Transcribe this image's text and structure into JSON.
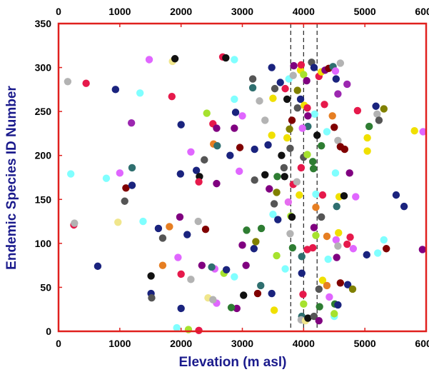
{
  "chart_data": {
    "type": "scatter",
    "xlabel": "Elevation (m asl)",
    "ylabel": "Endemic Species ID Number",
    "xlim": [
      0,
      6000
    ],
    "ylim": [
      0,
      350
    ],
    "xticks": [
      0,
      1000,
      2000,
      3000,
      4000,
      5000,
      6000
    ],
    "yticks": [
      0,
      50,
      100,
      150,
      200,
      250,
      300,
      350
    ],
    "xtick_labels": [
      "0",
      "1000",
      "2000",
      "3000",
      "4000",
      "5000",
      "6000"
    ],
    "ytick_labels": [
      "0",
      "50",
      "100",
      "150",
      "200",
      "250",
      "300",
      "350"
    ],
    "secondary_x_axis": "top",
    "grid": false,
    "frame_color": "#e0201e",
    "reference_lines_x": [
      3790,
      4000,
      4220
    ],
    "reference_line_style": "dashed",
    "points": [
      {
        "x": 150,
        "y": 284,
        "c": "#b3b3b3"
      },
      {
        "x": 450,
        "y": 282,
        "c": "#e6194b"
      },
      {
        "x": 930,
        "y": 275,
        "c": "#1a237e"
      },
      {
        "x": 1330,
        "y": 271,
        "c": "#80ffff"
      },
      {
        "x": 1190,
        "y": 237,
        "c": "#9c27b0"
      },
      {
        "x": 1480,
        "y": 309,
        "c": "#e066ff"
      },
      {
        "x": 1860,
        "y": 307,
        "c": "#f0e68c"
      },
      {
        "x": 1900,
        "y": 310,
        "c": "#111111"
      },
      {
        "x": 1850,
        "y": 267,
        "c": "#e6194b"
      },
      {
        "x": 2000,
        "y": 235,
        "c": "#1a237e"
      },
      {
        "x": 2420,
        "y": 248,
        "c": "#a6e22e"
      },
      {
        "x": 2520,
        "y": 236,
        "c": "#e6194b"
      },
      {
        "x": 2580,
        "y": 231,
        "c": "#800080"
      },
      {
        "x": 2680,
        "y": 312,
        "c": "#e6194b"
      },
      {
        "x": 2730,
        "y": 311,
        "c": "#111111"
      },
      {
        "x": 2870,
        "y": 309,
        "c": "#80ffff"
      },
      {
        "x": 2870,
        "y": 264,
        "c": "#80ffff"
      },
      {
        "x": 2890,
        "y": 249,
        "c": "#1a237e"
      },
      {
        "x": 2870,
        "y": 231,
        "c": "#800080"
      },
      {
        "x": 3000,
        "y": 245,
        "c": "#e066ff"
      },
      {
        "x": 3170,
        "y": 287,
        "c": "#555555"
      },
      {
        "x": 3170,
        "y": 277,
        "c": "#2f6f6f"
      },
      {
        "x": 3280,
        "y": 262,
        "c": "#b3b3b3"
      },
      {
        "x": 3370,
        "y": 240,
        "c": "#b3b3b3"
      },
      {
        "x": 3200,
        "y": 207,
        "c": "#1a237e"
      },
      {
        "x": 3420,
        "y": 212,
        "c": "#1a237e"
      },
      {
        "x": 3480,
        "y": 300,
        "c": "#1a237e"
      },
      {
        "x": 3500,
        "y": 265,
        "c": "#f0e000"
      },
      {
        "x": 3530,
        "y": 276,
        "c": "#555555"
      },
      {
        "x": 3620,
        "y": 283,
        "c": "#1a237e"
      },
      {
        "x": 3700,
        "y": 276,
        "c": "#e6194b"
      },
      {
        "x": 3730,
        "y": 264,
        "c": "#111111"
      },
      {
        "x": 3760,
        "y": 287,
        "c": "#80ffff"
      },
      {
        "x": 3840,
        "y": 302,
        "c": "#800080"
      },
      {
        "x": 3900,
        "y": 274,
        "c": "#808000"
      },
      {
        "x": 3950,
        "y": 297,
        "c": "#f0e000"
      },
      {
        "x": 3960,
        "y": 303,
        "c": "#e6194b"
      },
      {
        "x": 4000,
        "y": 292,
        "c": "#a6e22e"
      },
      {
        "x": 4050,
        "y": 285,
        "c": "#800080"
      },
      {
        "x": 4130,
        "y": 306,
        "c": "#555555"
      },
      {
        "x": 4170,
        "y": 300,
        "c": "#1a237e"
      },
      {
        "x": 4250,
        "y": 290,
        "c": "#e6194b"
      },
      {
        "x": 4290,
        "y": 295,
        "c": "#f0e000"
      },
      {
        "x": 4350,
        "y": 297,
        "c": "#800080"
      },
      {
        "x": 4410,
        "y": 299,
        "c": "#800000"
      },
      {
        "x": 4480,
        "y": 301,
        "c": "#2f6f6f"
      },
      {
        "x": 4520,
        "y": 296,
        "c": "#e066ff"
      },
      {
        "x": 4600,
        "y": 305,
        "c": "#b3b3b3"
      },
      {
        "x": 4530,
        "y": 287,
        "c": "#1a237e"
      },
      {
        "x": 4710,
        "y": 281,
        "c": "#9c27b0"
      },
      {
        "x": 4180,
        "y": 247,
        "c": "#80ffff"
      },
      {
        "x": 4340,
        "y": 258,
        "c": "#e6194b"
      },
      {
        "x": 4380,
        "y": 227,
        "c": "#80ffff"
      },
      {
        "x": 4470,
        "y": 245,
        "c": "#e67e22"
      },
      {
        "x": 4500,
        "y": 232,
        "c": "#800000"
      },
      {
        "x": 4560,
        "y": 217,
        "c": "#b3b3b3"
      },
      {
        "x": 4600,
        "y": 210,
        "c": "#800000"
      },
      {
        "x": 4560,
        "y": 270,
        "c": "#9c27b0"
      },
      {
        "x": 4290,
        "y": 211,
        "c": "#2e7d32"
      },
      {
        "x": 3830,
        "y": 291,
        "c": "#b3b3b3"
      },
      {
        "x": 3900,
        "y": 254,
        "c": "#555555"
      },
      {
        "x": 3950,
        "y": 264,
        "c": "#1a237e"
      },
      {
        "x": 4010,
        "y": 257,
        "c": "#f0e000"
      },
      {
        "x": 4060,
        "y": 254,
        "c": "#e6194b"
      },
      {
        "x": 4070,
        "y": 245,
        "c": "#800080"
      },
      {
        "x": 4070,
        "y": 233,
        "c": "#2f6f6f"
      },
      {
        "x": 3980,
        "y": 231,
        "c": "#e066ff"
      },
      {
        "x": 3810,
        "y": 240,
        "c": "#800000"
      },
      {
        "x": 3770,
        "y": 230,
        "c": "#808000"
      },
      {
        "x": 3730,
        "y": 220,
        "c": "#f0e000"
      },
      {
        "x": 3780,
        "y": 208,
        "c": "#555555"
      },
      {
        "x": 3640,
        "y": 200,
        "c": "#111111"
      },
      {
        "x": 3480,
        "y": 223,
        "c": "#f0e000"
      },
      {
        "x": 3680,
        "y": 186,
        "c": "#555555"
      },
      {
        "x": 3690,
        "y": 176,
        "c": "#111111"
      },
      {
        "x": 3570,
        "y": 176,
        "c": "#2e7d32"
      },
      {
        "x": 3440,
        "y": 162,
        "c": "#800080"
      },
      {
        "x": 3560,
        "y": 158,
        "c": "#808000"
      },
      {
        "x": 3520,
        "y": 145,
        "c": "#555555"
      },
      {
        "x": 3500,
        "y": 133,
        "c": "#80ffff"
      },
      {
        "x": 3580,
        "y": 127,
        "c": "#1a237e"
      },
      {
        "x": 3790,
        "y": 131,
        "c": "#a6e22e"
      },
      {
        "x": 3810,
        "y": 130,
        "c": "#111111"
      },
      {
        "x": 3750,
        "y": 147,
        "c": "#e66ef0"
      },
      {
        "x": 3830,
        "y": 167,
        "c": "#e6194b"
      },
      {
        "x": 3890,
        "y": 170,
        "c": "#b3b3b3"
      },
      {
        "x": 3930,
        "y": 155,
        "c": "#f0e000"
      },
      {
        "x": 3960,
        "y": 186,
        "c": "#e6194b"
      },
      {
        "x": 4000,
        "y": 198,
        "c": "#555555"
      },
      {
        "x": 4060,
        "y": 201,
        "c": "#a6e22e"
      },
      {
        "x": 4150,
        "y": 193,
        "c": "#2e7d32"
      },
      {
        "x": 4160,
        "y": 185,
        "c": "#2e7d32"
      },
      {
        "x": 4220,
        "y": 223,
        "c": "#111111"
      },
      {
        "x": 4200,
        "y": 156,
        "c": "#80ffff"
      },
      {
        "x": 4200,
        "y": 141,
        "c": "#e67e22"
      },
      {
        "x": 4310,
        "y": 155,
        "c": "#e6194b"
      },
      {
        "x": 4540,
        "y": 142,
        "c": "#2f6f6f"
      },
      {
        "x": 4580,
        "y": 153,
        "c": "#f0e000"
      },
      {
        "x": 4660,
        "y": 154,
        "c": "#111111"
      },
      {
        "x": 4850,
        "y": 153,
        "c": "#e066ff"
      },
      {
        "x": 4520,
        "y": 180,
        "c": "#80ffff"
      },
      {
        "x": 4750,
        "y": 180,
        "c": "#800080"
      },
      {
        "x": 4670,
        "y": 207,
        "c": "#800000"
      },
      {
        "x": 5040,
        "y": 205,
        "c": "#f0e000"
      },
      {
        "x": 5040,
        "y": 220,
        "c": "#f0e000"
      },
      {
        "x": 4880,
        "y": 251,
        "c": "#e6194b"
      },
      {
        "x": 5180,
        "y": 256,
        "c": "#1a237e"
      },
      {
        "x": 5200,
        "y": 247,
        "c": "#b3b3b3"
      },
      {
        "x": 5310,
        "y": 253,
        "c": "#808000"
      },
      {
        "x": 5070,
        "y": 233,
        "c": "#2e7d32"
      },
      {
        "x": 5230,
        "y": 240,
        "c": "#555555"
      },
      {
        "x": 5510,
        "y": 155,
        "c": "#1a237e"
      },
      {
        "x": 5640,
        "y": 142,
        "c": "#1a237e"
      },
      {
        "x": 5810,
        "y": 228,
        "c": "#f0e000"
      },
      {
        "x": 5950,
        "y": 227,
        "c": "#e066ff"
      },
      {
        "x": 5940,
        "y": 93,
        "c": "#800080"
      },
      {
        "x": 5350,
        "y": 94,
        "c": "#800000"
      },
      {
        "x": 5310,
        "y": 104,
        "c": "#80ffff"
      },
      {
        "x": 5210,
        "y": 89,
        "c": "#80ffff"
      },
      {
        "x": 5030,
        "y": 87,
        "c": "#1a237e"
      },
      {
        "x": 4810,
        "y": 94,
        "c": "#e066ff"
      },
      {
        "x": 4710,
        "y": 99,
        "c": "#e6194b"
      },
      {
        "x": 4760,
        "y": 107,
        "c": "#e6194b"
      },
      {
        "x": 4570,
        "y": 112,
        "c": "#f0e000"
      },
      {
        "x": 4530,
        "y": 104,
        "c": "#e066ff"
      },
      {
        "x": 4560,
        "y": 97,
        "c": "#b3b3b3"
      },
      {
        "x": 4400,
        "y": 82,
        "c": "#80ffff"
      },
      {
        "x": 4540,
        "y": 84,
        "c": "#800080"
      },
      {
        "x": 4380,
        "y": 108,
        "c": "#e67e22"
      },
      {
        "x": 4290,
        "y": 130,
        "c": "#555555"
      },
      {
        "x": 4170,
        "y": 118,
        "c": "#800080"
      },
      {
        "x": 4200,
        "y": 109,
        "c": "#a6e22e"
      },
      {
        "x": 4150,
        "y": 95,
        "c": "#e6194b"
      },
      {
        "x": 4060,
        "y": 93,
        "c": "#e6194b"
      },
      {
        "x": 3970,
        "y": 85,
        "c": "#2f6f6f"
      },
      {
        "x": 3820,
        "y": 95,
        "c": "#2e7d32"
      },
      {
        "x": 3780,
        "y": 111,
        "c": "#b3b3b3"
      },
      {
        "x": 3560,
        "y": 86,
        "c": "#a6e22e"
      },
      {
        "x": 3700,
        "y": 71,
        "c": "#80ffff"
      },
      {
        "x": 3190,
        "y": 94,
        "c": "#1a237e"
      },
      {
        "x": 3220,
        "y": 102,
        "c": "#808000"
      },
      {
        "x": 3000,
        "y": 98,
        "c": "#800080"
      },
      {
        "x": 3070,
        "y": 115,
        "c": "#2e7d32"
      },
      {
        "x": 3310,
        "y": 117,
        "c": "#2e7d32"
      },
      {
        "x": 3060,
        "y": 75,
        "c": "#800080"
      },
      {
        "x": 2870,
        "y": 62,
        "c": "#80ffff"
      },
      {
        "x": 2700,
        "y": 66,
        "c": "#a6e22e"
      },
      {
        "x": 2740,
        "y": 70,
        "c": "#1a237e"
      },
      {
        "x": 2550,
        "y": 71,
        "c": "#e066ff"
      },
      {
        "x": 2500,
        "y": 73,
        "c": "#2f6f6f"
      },
      {
        "x": 2340,
        "y": 75,
        "c": "#800080"
      },
      {
        "x": 2160,
        "y": 59,
        "c": "#b3b3b3"
      },
      {
        "x": 2000,
        "y": 65,
        "c": "#e6194b"
      },
      {
        "x": 1950,
        "y": 84,
        "c": "#e066ff"
      },
      {
        "x": 1700,
        "y": 75,
        "c": "#e67e22"
      },
      {
        "x": 1510,
        "y": 63,
        "c": "#111111"
      },
      {
        "x": 1510,
        "y": 43,
        "c": "#1a237e"
      },
      {
        "x": 1520,
        "y": 38,
        "c": "#555555"
      },
      {
        "x": 1700,
        "y": 106,
        "c": "#555555"
      },
      {
        "x": 1630,
        "y": 117,
        "c": "#1a237e"
      },
      {
        "x": 1810,
        "y": 119,
        "c": "#e67e22"
      },
      {
        "x": 1980,
        "y": 130,
        "c": "#800080"
      },
      {
        "x": 2100,
        "y": 110,
        "c": "#1a237e"
      },
      {
        "x": 2400,
        "y": 116,
        "c": "#800000"
      },
      {
        "x": 2280,
        "y": 125,
        "c": "#b3b3b3"
      },
      {
        "x": 1380,
        "y": 125,
        "c": "#80ffff"
      },
      {
        "x": 970,
        "y": 124,
        "c": "#f0e68c"
      },
      {
        "x": 640,
        "y": 74,
        "c": "#1a237e"
      },
      {
        "x": 250,
        "y": 121,
        "c": "#e6194b"
      },
      {
        "x": 260,
        "y": 123,
        "c": "#b3b3b3"
      },
      {
        "x": 1080,
        "y": 148,
        "c": "#555555"
      },
      {
        "x": 1100,
        "y": 163,
        "c": "#800000"
      },
      {
        "x": 1200,
        "y": 166,
        "c": "#1a237e"
      },
      {
        "x": 1000,
        "y": 180,
        "c": "#e066ff"
      },
      {
        "x": 780,
        "y": 174,
        "c": "#80ffff"
      },
      {
        "x": 1200,
        "y": 186,
        "c": "#2f6f6f"
      },
      {
        "x": 200,
        "y": 179,
        "c": "#80ffff"
      },
      {
        "x": 1990,
        "y": 179,
        "c": "#1a237e"
      },
      {
        "x": 2160,
        "y": 204,
        "c": "#e066ff"
      },
      {
        "x": 2250,
        "y": 183,
        "c": "#1a237e"
      },
      {
        "x": 2300,
        "y": 176,
        "c": "#111111"
      },
      {
        "x": 2290,
        "y": 170,
        "c": "#e6194b"
      },
      {
        "x": 2580,
        "y": 168,
        "c": "#800080"
      },
      {
        "x": 2530,
        "y": 213,
        "c": "#e67e22"
      },
      {
        "x": 2590,
        "y": 211,
        "c": "#2f6f6f"
      },
      {
        "x": 2380,
        "y": 195,
        "c": "#555555"
      },
      {
        "x": 2800,
        "y": 200,
        "c": "#1a237e"
      },
      {
        "x": 2960,
        "y": 209,
        "c": "#800000"
      },
      {
        "x": 2950,
        "y": 182,
        "c": "#e066ff"
      },
      {
        "x": 3200,
        "y": 172,
        "c": "#555555"
      },
      {
        "x": 3370,
        "y": 178,
        "c": "#111111"
      },
      {
        "x": 2910,
        "y": 26,
        "c": "#800080"
      },
      {
        "x": 2820,
        "y": 27,
        "c": "#2e7d32"
      },
      {
        "x": 2580,
        "y": 32,
        "c": "#e066ff"
      },
      {
        "x": 2440,
        "y": 38,
        "c": "#f0e68c"
      },
      {
        "x": 2520,
        "y": 36,
        "c": "#b3b3b3"
      },
      {
        "x": 3020,
        "y": 41,
        "c": "#111111"
      },
      {
        "x": 3250,
        "y": 43,
        "c": "#800000"
      },
      {
        "x": 3300,
        "y": 52,
        "c": "#2f6f6f"
      },
      {
        "x": 3480,
        "y": 43,
        "c": "#1a237e"
      },
      {
        "x": 3520,
        "y": 24,
        "c": "#f0e000"
      },
      {
        "x": 3970,
        "y": 66,
        "c": "#1a237e"
      },
      {
        "x": 3990,
        "y": 42,
        "c": "#e6194b"
      },
      {
        "x": 4000,
        "y": 31,
        "c": "#a6e22e"
      },
      {
        "x": 3970,
        "y": 17,
        "c": "#2f6f6f"
      },
      {
        "x": 3960,
        "y": 13,
        "c": "#b3b3b3"
      },
      {
        "x": 4030,
        "y": 12,
        "c": "#f0e68c"
      },
      {
        "x": 4070,
        "y": 15,
        "c": "#111111"
      },
      {
        "x": 4170,
        "y": 17,
        "c": "#555555"
      },
      {
        "x": 4250,
        "y": 12,
        "c": "#800080"
      },
      {
        "x": 4260,
        "y": 28,
        "c": "#2e7d32"
      },
      {
        "x": 4310,
        "y": 58,
        "c": "#f0e000"
      },
      {
        "x": 4380,
        "y": 52,
        "c": "#e67e22"
      },
      {
        "x": 4420,
        "y": 39,
        "c": "#e066ff"
      },
      {
        "x": 4510,
        "y": 31,
        "c": "#2e7d32"
      },
      {
        "x": 4560,
        "y": 30,
        "c": "#1a237e"
      },
      {
        "x": 4500,
        "y": 17,
        "c": "#80ffff"
      },
      {
        "x": 4500,
        "y": 20,
        "c": "#a6e22e"
      },
      {
        "x": 4600,
        "y": 55,
        "c": "#800000"
      },
      {
        "x": 4720,
        "y": 53,
        "c": "#1a237e"
      },
      {
        "x": 4800,
        "y": 48,
        "c": "#808000"
      },
      {
        "x": 4250,
        "y": 48,
        "c": "#555555"
      },
      {
        "x": 2000,
        "y": 26,
        "c": "#1a237e"
      },
      {
        "x": 1930,
        "y": 4,
        "c": "#80ffff"
      },
      {
        "x": 2120,
        "y": 2,
        "c": "#a6e22e"
      },
      {
        "x": 2290,
        "y": 1,
        "c": "#e6194b"
      }
    ]
  }
}
